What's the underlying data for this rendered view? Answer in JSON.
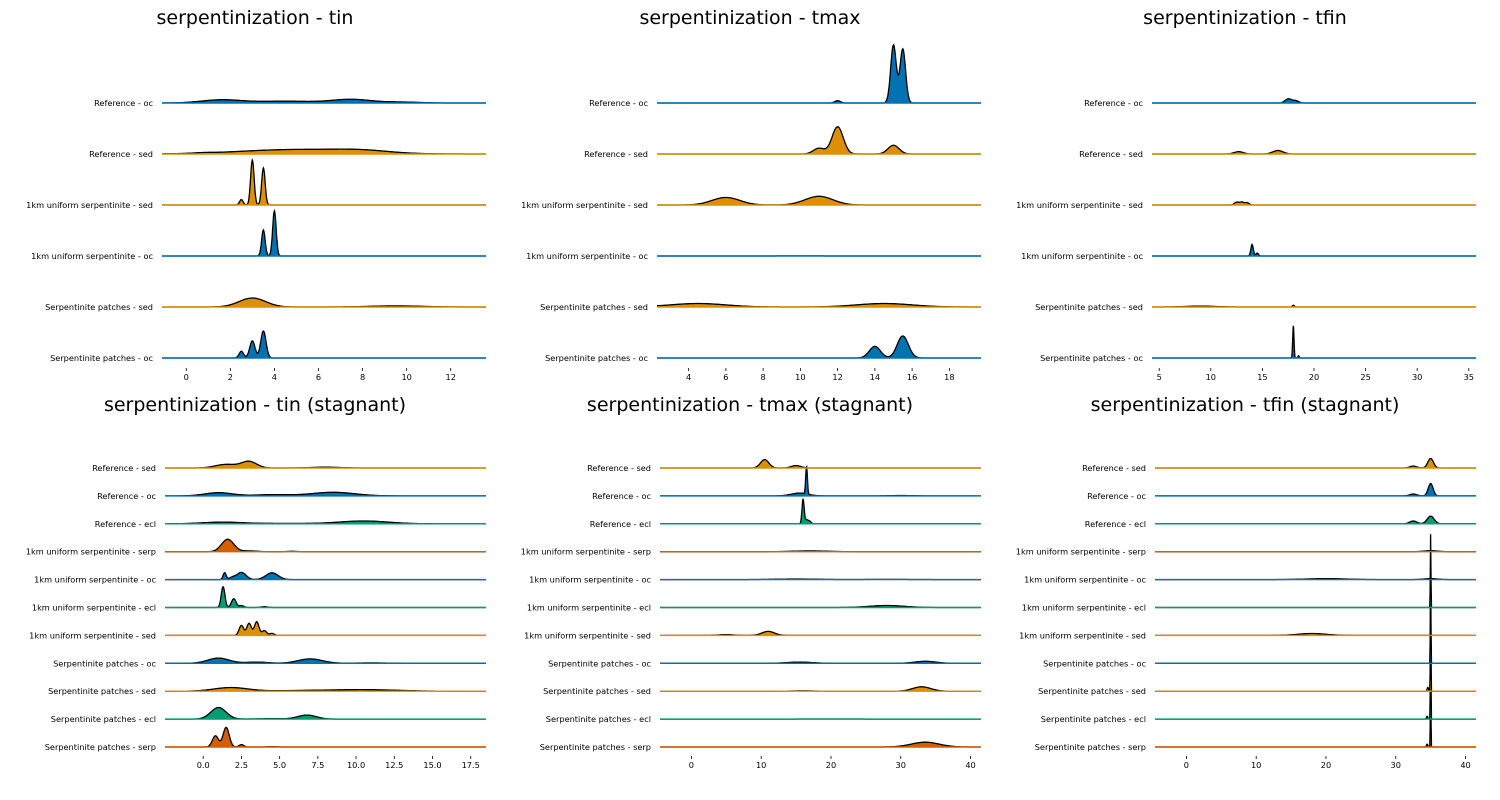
{
  "colors": {
    "blue": "#0173b2",
    "orange": "#de8f05",
    "green": "#029e73",
    "vermillion": "#d55e00",
    "outline": "#000000"
  },
  "chart_data": [
    {
      "type": "ridgeline",
      "title": "serpentinization - tin",
      "xlim": [
        -1.1,
        13.6
      ],
      "xticks": [
        0,
        2,
        4,
        6,
        8,
        10,
        12
      ],
      "series": [
        {
          "name": "Reference - oc",
          "color": "blue",
          "comps": [
            [
              1.6,
              0.9,
              0.07
            ],
            [
              4.5,
              1.3,
              0.04
            ],
            [
              7.5,
              0.9,
              0.08
            ],
            [
              9.8,
              0.8,
              0.02
            ]
          ]
        },
        {
          "name": "Reference - sed",
          "color": "orange",
          "comps": [
            [
              5,
              2.5,
              0.1
            ],
            [
              8,
              1.2,
              0.05
            ],
            [
              0.8,
              0.4,
              0.01
            ]
          ]
        },
        {
          "name": "1km uniform serpentinite - sed",
          "color": "orange",
          "comps": [
            [
              2.5,
              0.08,
              0.12
            ],
            [
              3,
              0.08,
              1.0
            ],
            [
              3.5,
              0.08,
              0.82
            ]
          ]
        },
        {
          "name": "1km uniform serpentinite - oc",
          "color": "blue",
          "comps": [
            [
              3.5,
              0.08,
              0.58
            ],
            [
              4,
              0.08,
              1.0
            ]
          ]
        },
        {
          "name": "Serpentinite patches - sed",
          "color": "orange",
          "comps": [
            [
              3,
              0.6,
              0.2
            ],
            [
              9.5,
              1.2,
              0.025
            ]
          ]
        },
        {
          "name": "Serpentinite patches - oc",
          "color": "blue",
          "comps": [
            [
              2.5,
              0.1,
              0.15
            ],
            [
              3,
              0.12,
              0.38
            ],
            [
              3.5,
              0.12,
              0.6
            ]
          ]
        }
      ]
    },
    {
      "type": "ridgeline",
      "title": "serpentinization - tmax",
      "xlim": [
        2.3,
        19.7
      ],
      "xticks": [
        4,
        6,
        8,
        10,
        12,
        14,
        16,
        18
      ],
      "series": [
        {
          "name": "Reference - oc",
          "color": "blue",
          "comps": [
            [
              15,
              0.15,
              1.0
            ],
            [
              15.5,
              0.15,
              0.93
            ],
            [
              12,
              0.15,
              0.04
            ]
          ]
        },
        {
          "name": "Reference - sed",
          "color": "orange",
          "comps": [
            [
              12,
              0.3,
              0.47
            ],
            [
              11,
              0.3,
              0.1
            ],
            [
              15,
              0.3,
              0.15
            ]
          ]
        },
        {
          "name": "1km uniform serpentinite - sed",
          "color": "orange",
          "comps": [
            [
              6,
              0.75,
              0.13
            ],
            [
              11,
              0.75,
              0.15
            ]
          ]
        },
        {
          "name": "1km uniform serpentinite - oc",
          "color": "blue",
          "comps": [
            [
              10,
              1.0,
              0.002
            ]
          ]
        },
        {
          "name": "Serpentinite patches - sed",
          "color": "orange",
          "comps": [
            [
              4.5,
              1.5,
              0.06
            ],
            [
              14.5,
              1.5,
              0.06
            ]
          ]
        },
        {
          "name": "Serpentinite patches - oc",
          "color": "blue",
          "comps": [
            [
              14,
              0.3,
              0.2
            ],
            [
              15.5,
              0.3,
              0.38
            ]
          ]
        }
      ]
    },
    {
      "type": "ridgeline",
      "title": "serpentinization - tfin",
      "xlim": [
        4.3,
        35.7
      ],
      "xticks": [
        5,
        10,
        15,
        20,
        25,
        30,
        35
      ],
      "series": [
        {
          "name": "Reference - oc",
          "color": "blue",
          "comps": [
            [
              17.5,
              0.3,
              0.07
            ],
            [
              18.2,
              0.3,
              0.04
            ]
          ]
        },
        {
          "name": "Reference - sed",
          "color": "orange",
          "comps": [
            [
              12.7,
              0.45,
              0.04
            ],
            [
              16.5,
              0.5,
              0.06
            ]
          ]
        },
        {
          "name": "1km uniform serpentinite - sed",
          "color": "orange",
          "comps": [
            [
              12.5,
              0.2,
              0.05
            ],
            [
              13,
              0.2,
              0.05
            ],
            [
              13.5,
              0.2,
              0.04
            ]
          ]
        },
        {
          "name": "1km uniform serpentinite - oc",
          "color": "blue",
          "comps": [
            [
              14,
              0.12,
              0.2
            ],
            [
              14.5,
              0.12,
              0.05
            ]
          ]
        },
        {
          "name": "Serpentinite patches - sed",
          "color": "orange",
          "comps": [
            [
              9,
              1.5,
              0.015
            ],
            [
              18,
              0.1,
              0.03
            ]
          ]
        },
        {
          "name": "Serpentinite patches - oc",
          "color": "blue",
          "comps": [
            [
              18,
              0.06,
              0.58
            ],
            [
              18.5,
              0.06,
              0.04
            ]
          ]
        }
      ]
    },
    {
      "type": "ridgeline",
      "title": "serpentinization - tin (stagnant)",
      "xlim": [
        -2.5,
        18.5
      ],
      "xticks": [
        0.0,
        2.5,
        5.0,
        7.5,
        10.0,
        12.5,
        15.0,
        17.5
      ],
      "series": [
        {
          "name": "Reference - sed",
          "color": "orange",
          "comps": [
            [
              1.5,
              0.7,
              0.09
            ],
            [
              3.0,
              0.5,
              0.16
            ],
            [
              8,
              1.0,
              0.02
            ]
          ]
        },
        {
          "name": "Reference - oc",
          "color": "blue",
          "comps": [
            [
              1.0,
              0.9,
              0.08
            ],
            [
              8.5,
              1.4,
              0.09
            ],
            [
              4.5,
              1.2,
              0.03
            ]
          ]
        },
        {
          "name": "Reference - ecl",
          "color": "green",
          "comps": [
            [
              1.2,
              1.3,
              0.04
            ],
            [
              10.5,
              1.6,
              0.07
            ],
            [
              5,
              2,
              0.01
            ]
          ]
        },
        {
          "name": "1km uniform serpentinite - serp",
          "color": "vermillion",
          "comps": [
            [
              1.6,
              0.4,
              0.31
            ],
            [
              3.0,
              0.5,
              0.02
            ],
            [
              5.8,
              0.3,
              0.01
            ]
          ]
        },
        {
          "name": "1km uniform serpentinite - oc",
          "color": "blue",
          "comps": [
            [
              1.4,
              0.1,
              0.17
            ],
            [
              2.5,
              0.3,
              0.18
            ],
            [
              4.5,
              0.4,
              0.17
            ],
            [
              1.9,
              0.2,
              0.05
            ]
          ]
        },
        {
          "name": "1km uniform serpentinite - ecl",
          "color": "green",
          "comps": [
            [
              1.3,
              0.12,
              0.52
            ],
            [
              2.0,
              0.15,
              0.22
            ],
            [
              2.5,
              0.15,
              0.05
            ],
            [
              4.0,
              0.2,
              0.02
            ]
          ]
        },
        {
          "name": "1km uniform serpentinite - sed",
          "color": "orange",
          "comps": [
            [
              2.5,
              0.15,
              0.25
            ],
            [
              3.0,
              0.15,
              0.3
            ],
            [
              3.5,
              0.15,
              0.34
            ],
            [
              4.0,
              0.15,
              0.12
            ],
            [
              4.5,
              0.15,
              0.05
            ]
          ]
        },
        {
          "name": "Serpentinite patches - oc",
          "color": "blue",
          "comps": [
            [
              1.0,
              0.7,
              0.13
            ],
            [
              3.5,
              0.7,
              0.03
            ],
            [
              7.0,
              0.8,
              0.11
            ],
            [
              11,
              1,
              0.01
            ]
          ]
        },
        {
          "name": "Serpentinite patches - sed",
          "color": "orange",
          "comps": [
            [
              1.8,
              1.1,
              0.09
            ],
            [
              7.5,
              2.5,
              0.02
            ],
            [
              11,
              2,
              0.03
            ]
          ]
        },
        {
          "name": "Serpentinite patches - ecl",
          "color": "green",
          "comps": [
            [
              1.0,
              0.5,
              0.29
            ],
            [
              6.8,
              0.6,
              0.1
            ],
            [
              4.5,
              1,
              0.01
            ]
          ]
        },
        {
          "name": "Serpentinite patches - serp",
          "color": "vermillion",
          "comps": [
            [
              0.8,
              0.2,
              0.28
            ],
            [
              1.5,
              0.2,
              0.49
            ],
            [
              2.5,
              0.15,
              0.06
            ],
            [
              4.5,
              0.3,
              0.01
            ]
          ]
        }
      ]
    },
    {
      "type": "ridgeline",
      "title": "serpentinization - tmax (stagnant)",
      "xlim": [
        -4.5,
        41.5
      ],
      "xticks": [
        0,
        10,
        20,
        30,
        40
      ],
      "series": [
        {
          "name": "Reference - sed",
          "color": "orange",
          "comps": [
            [
              10.5,
              0.6,
              0.21
            ],
            [
              15,
              0.7,
              0.06
            ]
          ]
        },
        {
          "name": "Reference - oc",
          "color": "blue",
          "comps": [
            [
              15.5,
              1.2,
              0.07
            ],
            [
              16.5,
              0.12,
              0.7
            ],
            [
              30,
              1.5,
              0.01
            ]
          ]
        },
        {
          "name": "Reference - ecl",
          "color": "green",
          "comps": [
            [
              16,
              0.15,
              0.6
            ],
            [
              16.5,
              0.3,
              0.1
            ],
            [
              17,
              0.2,
              0.04
            ]
          ]
        },
        {
          "name": "1km uniform serpentinite - serp",
          "color": "vermillion",
          "comps": [
            [
              17,
              2.5,
              0.02
            ]
          ]
        },
        {
          "name": "1km uniform serpentinite - oc",
          "color": "blue",
          "comps": [
            [
              15,
              3,
              0.015
            ],
            [
              28,
              4,
              0.005
            ]
          ]
        },
        {
          "name": "1km uniform serpentinite - ecl",
          "color": "green",
          "comps": [
            [
              28,
              2.5,
              0.05
            ]
          ]
        },
        {
          "name": "1km uniform serpentinite - sed",
          "color": "orange",
          "comps": [
            [
              11,
              0.9,
              0.1
            ],
            [
              5,
              1,
              0.02
            ]
          ]
        },
        {
          "name": "Serpentinite patches - oc",
          "color": "blue",
          "comps": [
            [
              15.5,
              1.8,
              0.03
            ],
            [
              33.5,
              1.5,
              0.05
            ]
          ]
        },
        {
          "name": "Serpentinite patches - sed",
          "color": "orange",
          "comps": [
            [
              16,
              1.5,
              0.01
            ],
            [
              33,
              1.3,
              0.11
            ]
          ]
        },
        {
          "name": "Serpentinite patches - ecl",
          "color": "green",
          "comps": [
            [
              20,
              5,
              0.002
            ]
          ]
        },
        {
          "name": "Serpentinite patches - serp",
          "color": "vermillion",
          "comps": [
            [
              33.5,
              2.0,
              0.12
            ]
          ]
        }
      ]
    },
    {
      "type": "ridgeline",
      "title": "serpentinization - tfin (stagnant)",
      "xlim": [
        -4.5,
        41.5
      ],
      "xticks": [
        0,
        10,
        20,
        30,
        40
      ],
      "series": [
        {
          "name": "Reference - sed",
          "color": "orange",
          "comps": [
            [
              35,
              0.4,
              0.1
            ],
            [
              32.5,
              0.5,
              0.02
            ]
          ]
        },
        {
          "name": "Reference - oc",
          "color": "blue",
          "comps": [
            [
              35,
              0.35,
              0.13
            ],
            [
              32.5,
              0.5,
              0.02
            ]
          ]
        },
        {
          "name": "Reference - ecl",
          "color": "green",
          "comps": [
            [
              35,
              0.5,
              0.08
            ],
            [
              32.5,
              0.5,
              0.03
            ]
          ]
        },
        {
          "name": "1km uniform serpentinite - serp",
          "color": "vermillion",
          "comps": [
            [
              35,
              1,
              0.01
            ]
          ]
        },
        {
          "name": "1km uniform serpentinite - oc",
          "color": "blue",
          "comps": [
            [
              20,
              3,
              0.01
            ],
            [
              35,
              1,
              0.01
            ]
          ]
        },
        {
          "name": "1km uniform serpentinite - ecl",
          "color": "green",
          "comps": [
            [
              35,
              0.04,
              0.78
            ]
          ]
        },
        {
          "name": "1km uniform serpentinite - sed",
          "color": "orange",
          "comps": [
            [
              18,
              2,
              0.02
            ]
          ]
        },
        {
          "name": "Serpentinite patches - oc",
          "color": "blue",
          "comps": [
            [
              35,
              0.04,
              1.0
            ]
          ]
        },
        {
          "name": "Serpentinite patches - sed",
          "color": "orange",
          "comps": [
            [
              35,
              0.04,
              1.0
            ],
            [
              34.6,
              0.1,
              0.04
            ]
          ]
        },
        {
          "name": "Serpentinite patches - ecl",
          "color": "green",
          "comps": [
            [
              35,
              0.04,
              1.0
            ],
            [
              34.5,
              0.1,
              0.03
            ]
          ]
        },
        {
          "name": "Serpentinite patches - serp",
          "color": "vermillion",
          "comps": [
            [
              35,
              0.04,
              0.78
            ],
            [
              34.5,
              0.1,
              0.03
            ]
          ]
        }
      ]
    }
  ]
}
